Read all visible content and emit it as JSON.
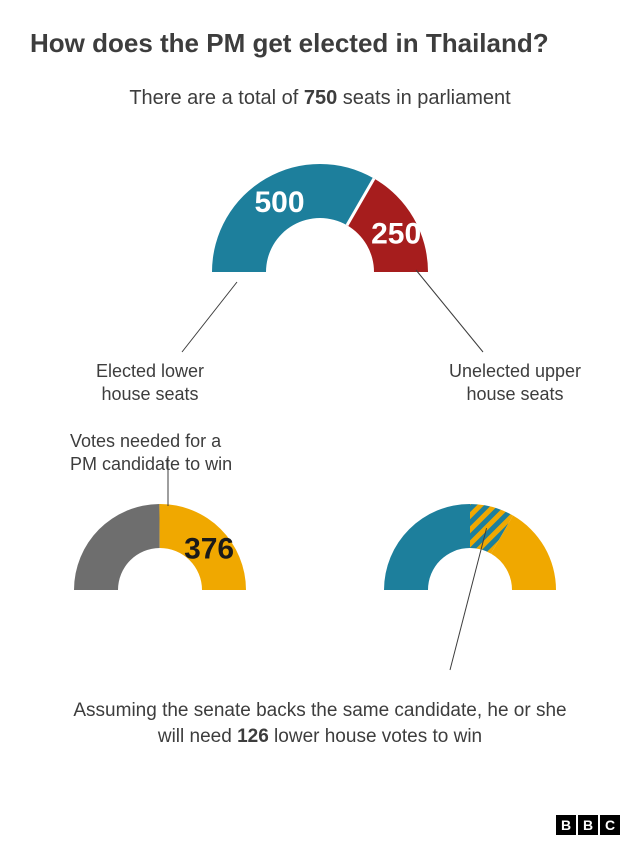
{
  "title": "How does the PM get elected in Thailand?",
  "subtitle_parts": [
    "There are a total of ",
    "750",
    " seats in parliament"
  ],
  "donut1": {
    "seg_a": {
      "value": 500,
      "color": "#1d7f9c",
      "start_deg": 180,
      "end_deg": 60
    },
    "seg_b": {
      "value": 250,
      "color": "#a61d1d",
      "start_deg": 60,
      "end_deg": 0
    },
    "label_a": "Elected lower\nhouse seats",
    "label_b": "Unelected upper\nhouse seats"
  },
  "donut2": {
    "caption": "Votes needed for a\nPM candidate to win",
    "seg_a": {
      "color": "#6e6e6e",
      "start_deg": 180,
      "end_deg": 90.4
    },
    "seg_b": {
      "value": 376,
      "color": "#f0a800",
      "start_deg": 90.4,
      "end_deg": 0
    }
  },
  "donut3": {
    "seg_a": {
      "color": "#1d7f9c",
      "start_deg": 180,
      "end_deg": 90
    },
    "seg_b": {
      "color": "hatch",
      "start_deg": 90,
      "end_deg": 60,
      "hatch_c1": "#f0a800",
      "hatch_c2": "#1d7f9c"
    },
    "seg_c": {
      "color": "#f0a800",
      "start_deg": 60,
      "end_deg": 0
    }
  },
  "bottom_parts": [
    "Assuming the senate backs the same candidate, he or she will need ",
    "126",
    " lower house votes to win"
  ],
  "source_logo": [
    "B",
    "B",
    "C"
  ],
  "arc": {
    "inner_r": 54,
    "outer_r": 108
  },
  "arc_small": {
    "inner_r": 42,
    "outer_r": 86
  },
  "stroke_thin": "#3d3d3d"
}
